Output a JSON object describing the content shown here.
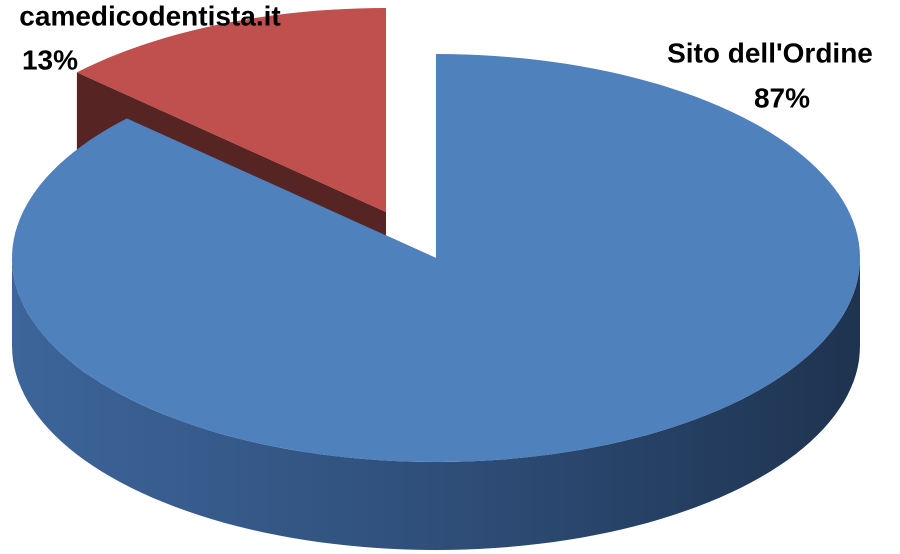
{
  "chart_data": {
    "type": "pie",
    "categories": [
      "camedicodentista.it",
      "Sito dell'Ordine"
    ],
    "values": [
      13,
      87
    ],
    "value_labels": [
      "13%",
      "87%"
    ],
    "colors": [
      "#c0504d",
      "#4f81bd"
    ]
  }
}
